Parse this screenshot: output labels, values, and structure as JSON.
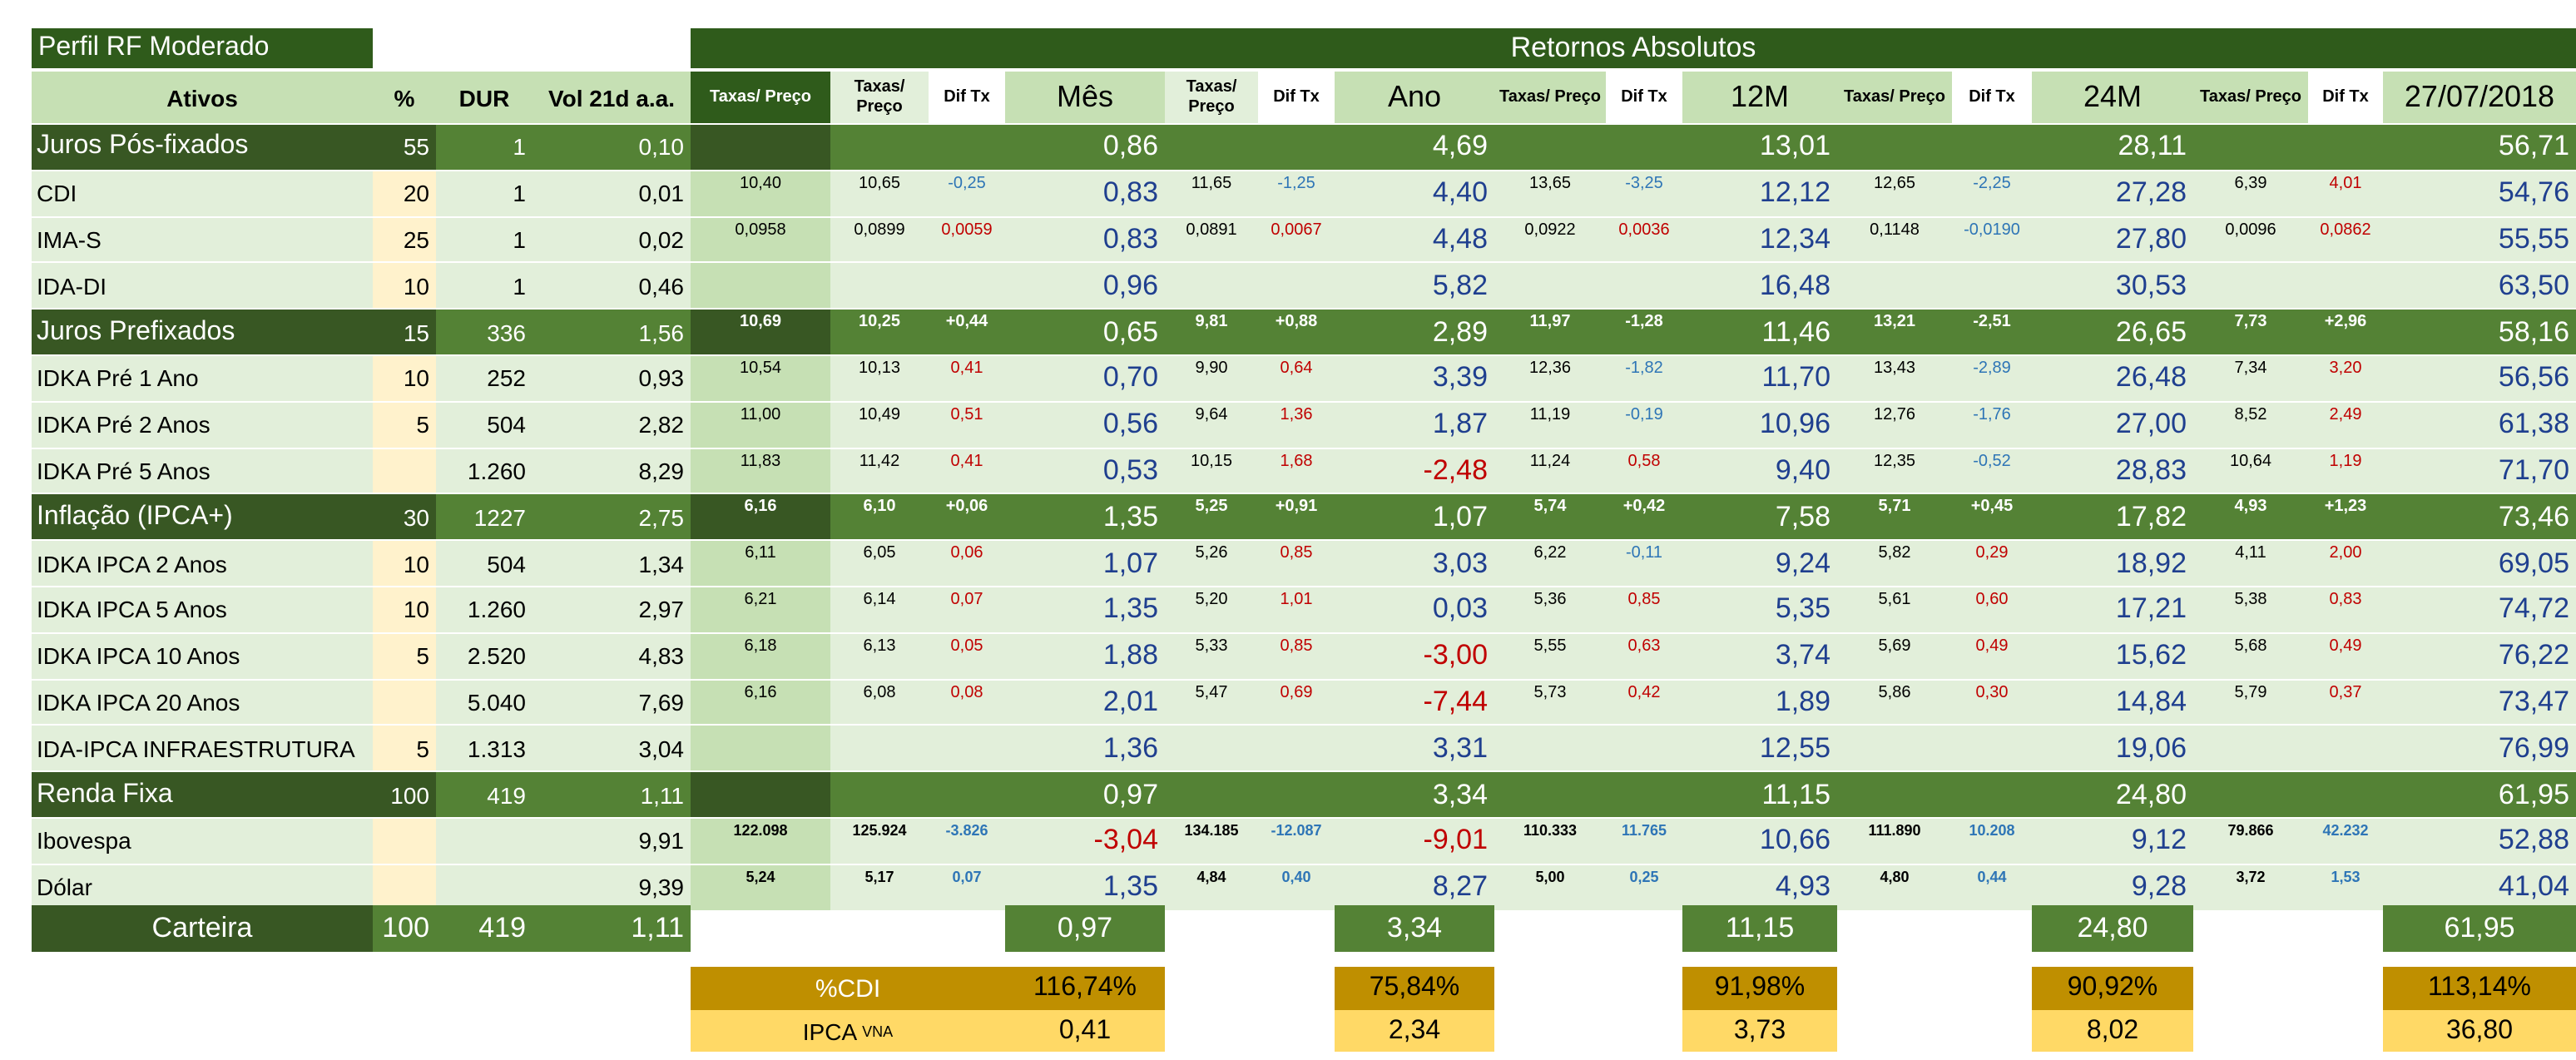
{
  "profile_title": "Perfil RF Moderado",
  "returns_title": "Retornos Absolutos",
  "colors": {
    "dark_green": "#2f5b1b",
    "mid_green": "#548235",
    "light_green": "#e2efda",
    "mid_light_green": "#c6e0b4",
    "cream": "#fff2cc",
    "gold": "#bf8f00",
    "yellow": "#ffd966",
    "blue": "#1f3f8f",
    "red": "#c00000"
  },
  "headers": {
    "ativos": "Ativos",
    "pct": "%",
    "dur": "DUR",
    "vol": "Vol 21d a.a.",
    "taxas_preco": "Taxas/ Preço",
    "dif_tx": "Dif Tx",
    "mes": "Mês",
    "ano": "Ano",
    "m12": "12M",
    "m24": "24M",
    "date": "27/07/2018"
  },
  "rows": [
    {
      "name": "Juros Pós-fixados",
      "pct": "55",
      "dur": "1",
      "vol": "0,10",
      "tx0": "",
      "tx1": "",
      "d1": "",
      "mes": "0,86",
      "tx2": "",
      "d2": "",
      "ano": "4,69",
      "tx3": "",
      "d3": "",
      "m12": "13,01",
      "tx4": "",
      "d4": "",
      "m24": "28,11",
      "tx5": "",
      "d5": "",
      "tot": "56,71"
    },
    {
      "name": "CDI",
      "pct": "20",
      "dur": "1",
      "vol": "0,01",
      "tx0": "10,40",
      "tx1": "10,65",
      "d1": "-0,25",
      "mes": "0,83",
      "tx2": "11,65",
      "d2": "-1,25",
      "ano": "4,40",
      "tx3": "13,65",
      "d3": "-3,25",
      "m12": "12,12",
      "tx4": "12,65",
      "d4": "-2,25",
      "m24": "27,28",
      "tx5": "6,39",
      "d5": "4,01",
      "tot": "54,76"
    },
    {
      "name": "IMA-S",
      "pct": "25",
      "dur": "1",
      "vol": "0,02",
      "tx0": "0,0958",
      "tx1": "0,0899",
      "d1": "0,0059",
      "mes": "0,83",
      "tx2": "0,0891",
      "d2": "0,0067",
      "ano": "4,48",
      "tx3": "0,0922",
      "d3": "0,0036",
      "m12": "12,34",
      "tx4": "0,1148",
      "d4": "-0,0190",
      "m24": "27,80",
      "tx5": "0,0096",
      "d5": "0,0862",
      "tot": "55,55"
    },
    {
      "name": "IDA-DI",
      "pct": "10",
      "dur": "1",
      "vol": "0,46",
      "tx0": "",
      "tx1": "",
      "d1": "",
      "mes": "0,96",
      "tx2": "",
      "d2": "",
      "ano": "5,82",
      "tx3": "",
      "d3": "",
      "m12": "16,48",
      "tx4": "",
      "d4": "",
      "m24": "30,53",
      "tx5": "",
      "d5": "",
      "tot": "63,50"
    },
    {
      "name": "Juros Prefixados",
      "pct": "15",
      "dur": "336",
      "vol": "1,56",
      "tx0": "10,69",
      "tx1": "10,25",
      "d1": "+0,44",
      "mes": "0,65",
      "tx2": "9,81",
      "d2": "+0,88",
      "ano": "2,89",
      "tx3": "11,97",
      "d3": "-1,28",
      "m12": "11,46",
      "tx4": "13,21",
      "d4": "-2,51",
      "m24": "26,65",
      "tx5": "7,73",
      "d5": "+2,96",
      "tot": "58,16"
    },
    {
      "name": "IDKA Pré 1 Ano",
      "pct": "10",
      "dur": "252",
      "vol": "0,93",
      "tx0": "10,54",
      "tx1": "10,13",
      "d1": "0,41",
      "mes": "0,70",
      "tx2": "9,90",
      "d2": "0,64",
      "ano": "3,39",
      "tx3": "12,36",
      "d3": "-1,82",
      "m12": "11,70",
      "tx4": "13,43",
      "d4": "-2,89",
      "m24": "26,48",
      "tx5": "7,34",
      "d5": "3,20",
      "tot": "56,56"
    },
    {
      "name": "IDKA Pré 2 Anos",
      "pct": "5",
      "dur": "504",
      "vol": "2,82",
      "tx0": "11,00",
      "tx1": "10,49",
      "d1": "0,51",
      "mes": "0,56",
      "tx2": "9,64",
      "d2": "1,36",
      "ano": "1,87",
      "tx3": "11,19",
      "d3": "-0,19",
      "m12": "10,96",
      "tx4": "12,76",
      "d4": "-1,76",
      "m24": "27,00",
      "tx5": "8,52",
      "d5": "2,49",
      "tot": "61,38"
    },
    {
      "name": "IDKA Pré 5 Anos",
      "pct": "",
      "dur": "1.260",
      "vol": "8,29",
      "tx0": "11,83",
      "tx1": "11,42",
      "d1": "0,41",
      "mes": "0,53",
      "tx2": "10,15",
      "d2": "1,68",
      "ano": "-2,48",
      "tx3": "11,24",
      "d3": "0,58",
      "m12": "9,40",
      "tx4": "12,35",
      "d4": "-0,52",
      "m24": "28,83",
      "tx5": "10,64",
      "d5": "1,19",
      "tot": "71,70"
    },
    {
      "name": "Inflação (IPCA+)",
      "pct": "30",
      "dur": "1227",
      "vol": "2,75",
      "tx0": "6,16",
      "tx1": "6,10",
      "d1": "+0,06",
      "mes": "1,35",
      "tx2": "5,25",
      "d2": "+0,91",
      "ano": "1,07",
      "tx3": "5,74",
      "d3": "+0,42",
      "m12": "7,58",
      "tx4": "5,71",
      "d4": "+0,45",
      "m24": "17,82",
      "tx5": "4,93",
      "d5": "+1,23",
      "tot": "73,46"
    },
    {
      "name": "IDKA IPCA 2 Anos",
      "pct": "10",
      "dur": "504",
      "vol": "1,34",
      "tx0": "6,11",
      "tx1": "6,05",
      "d1": "0,06",
      "mes": "1,07",
      "tx2": "5,26",
      "d2": "0,85",
      "ano": "3,03",
      "tx3": "6,22",
      "d3": "-0,11",
      "m12": "9,24",
      "tx4": "5,82",
      "d4": "0,29",
      "m24": "18,92",
      "tx5": "4,11",
      "d5": "2,00",
      "tot": "69,05"
    },
    {
      "name": "IDKA IPCA 5 Anos",
      "pct": "10",
      "dur": "1.260",
      "vol": "2,97",
      "tx0": "6,21",
      "tx1": "6,14",
      "d1": "0,07",
      "mes": "1,35",
      "tx2": "5,20",
      "d2": "1,01",
      "ano": "0,03",
      "tx3": "5,36",
      "d3": "0,85",
      "m12": "5,35",
      "tx4": "5,61",
      "d4": "0,60",
      "m24": "17,21",
      "tx5": "5,38",
      "d5": "0,83",
      "tot": "74,72"
    },
    {
      "name": "IDKA IPCA 10 Anos",
      "pct": "5",
      "dur": "2.520",
      "vol": "4,83",
      "tx0": "6,18",
      "tx1": "6,13",
      "d1": "0,05",
      "mes": "1,88",
      "tx2": "5,33",
      "d2": "0,85",
      "ano": "-3,00",
      "tx3": "5,55",
      "d3": "0,63",
      "m12": "3,74",
      "tx4": "5,69",
      "d4": "0,49",
      "m24": "15,62",
      "tx5": "5,68",
      "d5": "0,49",
      "tot": "76,22"
    },
    {
      "name": "IDKA IPCA 20 Anos",
      "pct": "",
      "dur": "5.040",
      "vol": "7,69",
      "tx0": "6,16",
      "tx1": "6,08",
      "d1": "0,08",
      "mes": "2,01",
      "tx2": "5,47",
      "d2": "0,69",
      "ano": "-7,44",
      "tx3": "5,73",
      "d3": "0,42",
      "m12": "1,89",
      "tx4": "5,86",
      "d4": "0,30",
      "m24": "14,84",
      "tx5": "5,79",
      "d5": "0,37",
      "tot": "73,47"
    },
    {
      "name": "IDA-IPCA INFRAESTRUTURA",
      "pct": "5",
      "dur": "1.313",
      "vol": "3,04",
      "tx0": "",
      "tx1": "",
      "d1": "",
      "mes": "1,36",
      "tx2": "",
      "d2": "",
      "ano": "3,31",
      "tx3": "",
      "d3": "",
      "m12": "12,55",
      "tx4": "",
      "d4": "",
      "m24": "19,06",
      "tx5": "",
      "d5": "",
      "tot": "76,99"
    },
    {
      "name": "Renda Fixa",
      "pct": "100",
      "dur": "419",
      "vol": "1,11",
      "tx0": "",
      "tx1": "",
      "d1": "",
      "mes": "0,97",
      "tx2": "",
      "d2": "",
      "ano": "3,34",
      "tx3": "",
      "d3": "",
      "m12": "11,15",
      "tx4": "",
      "d4": "",
      "m24": "24,80",
      "tx5": "",
      "d5": "",
      "tot": "61,95"
    },
    {
      "name": "Ibovespa",
      "pct": "",
      "dur": "",
      "vol": "9,91",
      "tx0": "122.098",
      "tx1": "125.924",
      "d1": "-3.826",
      "mes": "-3,04",
      "tx2": "134.185",
      "d2": "-12.087",
      "ano": "-9,01",
      "tx3": "110.333",
      "d3": "11.765",
      "m12": "10,66",
      "tx4": "111.890",
      "d4": "10.208",
      "m24": "9,12",
      "tx5": "79.866",
      "d5": "42.232",
      "tot": "52,88"
    },
    {
      "name": "Dólar",
      "pct": "",
      "dur": "",
      "vol": "9,39",
      "tx0": "5,24",
      "tx1": "5,17",
      "d1": "0,07",
      "mes": "1,35",
      "tx2": "4,84",
      "d2": "0,40",
      "ano": "8,27",
      "tx3": "5,00",
      "d3": "0,25",
      "m12": "4,93",
      "tx4": "4,80",
      "d4": "0,44",
      "m24": "9,28",
      "tx5": "3,72",
      "d5": "1,53",
      "tot": "41,04"
    }
  ],
  "carteira": {
    "label": "Carteira",
    "pct": "100",
    "dur": "419",
    "vol": "1,11",
    "mes": "0,97",
    "ano": "3,34",
    "m12": "11,15",
    "m24": "24,80",
    "tot": "61,95"
  },
  "pct_cdi": {
    "label": "%CDI",
    "mes": "116,74%",
    "ano": "75,84%",
    "m12": "91,98%",
    "m24": "90,92%",
    "tot": "113,14%"
  },
  "ipca": {
    "label": "IPCA",
    "label_sup": "VNA",
    "mes": "0,41",
    "ano": "2,34",
    "m12": "3,73",
    "m24": "8,02",
    "tot": "36,80"
  }
}
